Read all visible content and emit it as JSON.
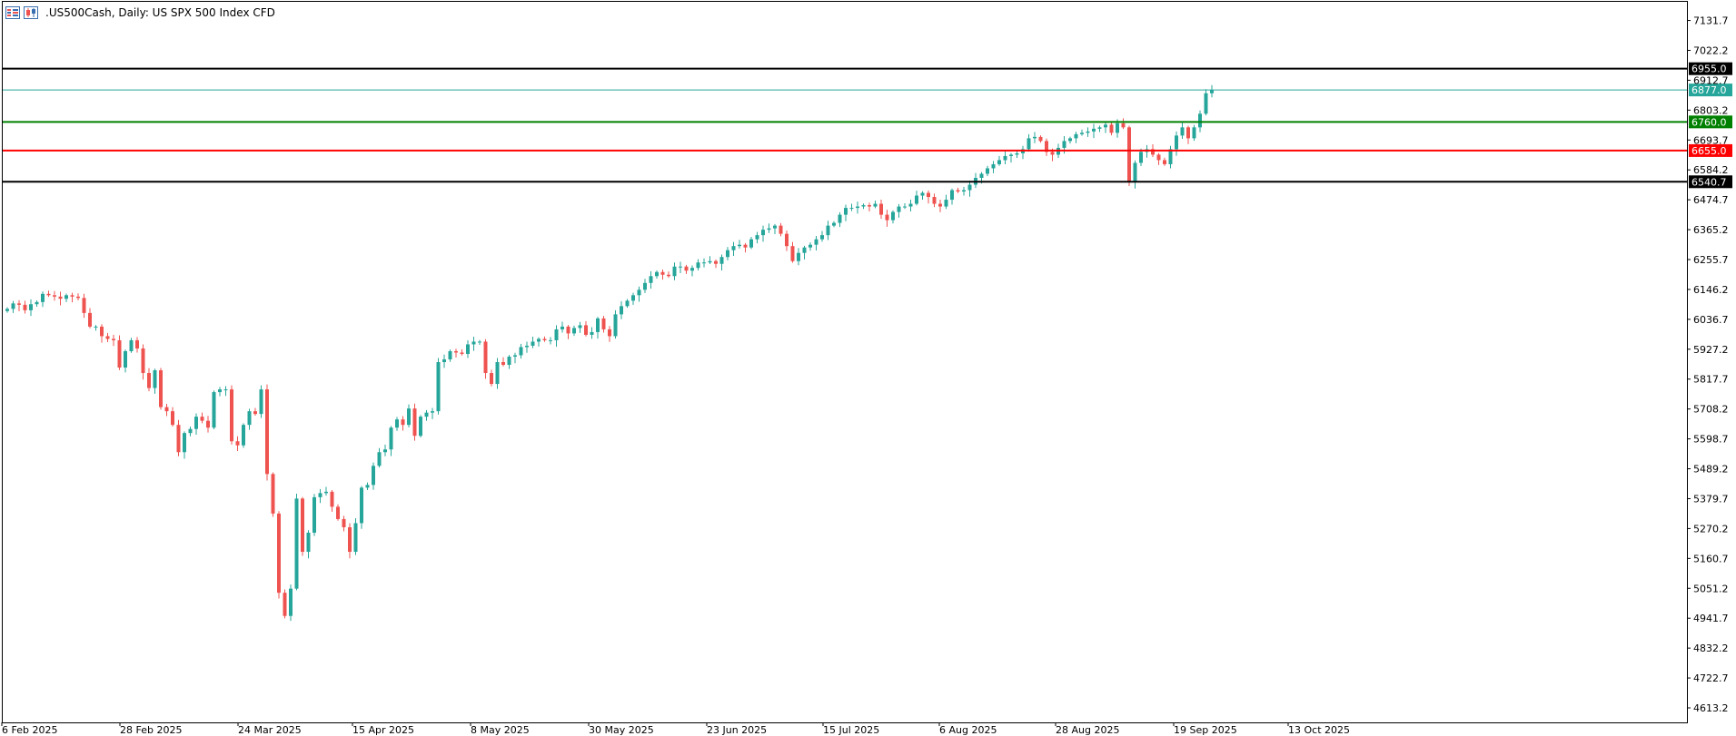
{
  "header": {
    "title": ".US500Cash, Daily:  US SPX 500 Index CFD",
    "icons": [
      "bars-icon",
      "candles-icon"
    ]
  },
  "colors": {
    "bull": "#26a69a",
    "bear": "#ef5350",
    "resistance_high": "#000000",
    "current_price": "#26a69a",
    "support_green": "#008000",
    "support_red": "#ff0000",
    "support_low": "#000000"
  },
  "chart_data": {
    "type": "candlestick",
    "symbol": ".US500Cash",
    "timeframe": "Daily",
    "description": "US SPX 500 Index CFD",
    "ylim": [
      4560,
      7200
    ],
    "y_ticks": [
      "7131.7",
      "7022.2",
      "6912.7",
      "6803.2",
      "6693.7",
      "6584.2",
      "6474.7",
      "6365.2",
      "6255.7",
      "6146.2",
      "6036.7",
      "5927.2",
      "5817.7",
      "5708.2",
      "5598.7",
      "5489.2",
      "5379.7",
      "5270.2",
      "5160.7",
      "5051.2",
      "4941.7",
      "4832.2",
      "4722.7",
      "4613.2"
    ],
    "x_ticks": [
      "6 Feb 2025",
      "28 Feb 2025",
      "24 Mar 2025",
      "15 Apr 2025",
      "8 May 2025",
      "30 May 2025",
      "23 Jun 2025",
      "15 Jul 2025",
      "6 Aug 2025",
      "28 Aug 2025",
      "19 Sep 2025",
      "13 Oct 2025"
    ],
    "horizontal_lines": [
      {
        "value": 6955.0,
        "label": "6955.0",
        "color": "#000000",
        "width": 2
      },
      {
        "value": 6877.0,
        "label": "6877.0",
        "color": "#26a69a",
        "width": 1
      },
      {
        "value": 6760.0,
        "label": "6760.0",
        "color": "#008000",
        "width": 2
      },
      {
        "value": 6655.0,
        "label": "6655.0",
        "color": "#ff0000",
        "width": 2
      },
      {
        "value": 6540.7,
        "label": "6540.7",
        "color": "#000000",
        "width": 2
      }
    ],
    "close": [
      6075,
      6095,
      6090,
      6070,
      6092,
      6100,
      6130,
      6125,
      6120,
      6112,
      6125,
      6120,
      6115,
      6060,
      6010,
      6010,
      5975,
      5965,
      5960,
      5860,
      5920,
      5960,
      5930,
      5840,
      5785,
      5850,
      5715,
      5700,
      5650,
      5550,
      5620,
      5635,
      5680,
      5665,
      5640,
      5770,
      5780,
      5780,
      5590,
      5575,
      5650,
      5700,
      5690,
      5780,
      5470,
      5325,
      5035,
      4950,
      5050,
      5380,
      5185,
      5255,
      5385,
      5400,
      5405,
      5350,
      5305,
      5275,
      5185,
      5290,
      5420,
      5430,
      5500,
      5550,
      5560,
      5640,
      5670,
      5650,
      5710,
      5610,
      5680,
      5695,
      5700,
      5880,
      5890,
      5920,
      5915,
      5910,
      5945,
      5955,
      5955,
      5840,
      5800,
      5880,
      5870,
      5900,
      5905,
      5935,
      5940,
      5955,
      5965,
      5960,
      5960,
      6000,
      6010,
      5985,
      6005,
      6015,
      5980,
      5990,
      6040,
      6000,
      5975,
      6055,
      6085,
      6105,
      6125,
      6145,
      6170,
      6195,
      6210,
      6200,
      6195,
      6230,
      6230,
      6215,
      6225,
      6245,
      6245,
      6250,
      6240,
      6265,
      6290,
      6305,
      6310,
      6300,
      6330,
      6345,
      6365,
      6370,
      6380,
      6350,
      6305,
      6250,
      6280,
      6300,
      6310,
      6330,
      6345,
      6380,
      6390,
      6420,
      6445,
      6445,
      6450,
      6455,
      6450,
      6460,
      6420,
      6400,
      6430,
      6450,
      6450,
      6460,
      6490,
      6500,
      6485,
      6460,
      6450,
      6475,
      6510,
      6505,
      6510,
      6530,
      6555,
      6570,
      6590,
      6605,
      6620,
      6635,
      6640,
      6645,
      6660,
      6700,
      6705,
      6690,
      6650,
      6640,
      6665,
      6690,
      6700,
      6715,
      6720,
      6725,
      6735,
      6740,
      6750,
      6720,
      6755,
      6740,
      6540,
      6610,
      6650,
      6660,
      6640,
      6620,
      6605,
      6660,
      6710,
      6740,
      6700,
      6740,
      6790,
      6865,
      6877
    ]
  }
}
